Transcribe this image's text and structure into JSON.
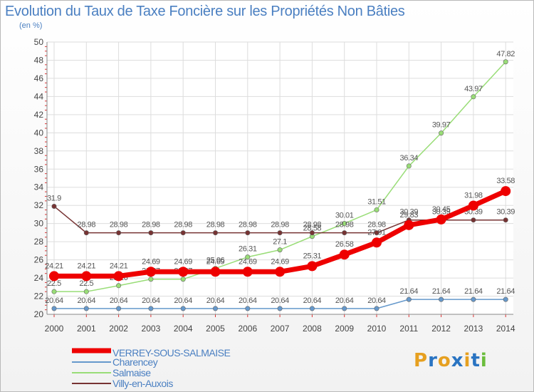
{
  "chart_data": {
    "type": "line",
    "title": "Evolution du Taux de Taxe Foncière sur les Propriétés Non Bâties",
    "ylabel": "(en %)",
    "xlabel": "",
    "ylim": [
      20,
      50
    ],
    "yticks": [
      20,
      22,
      24,
      26,
      28,
      30,
      32,
      34,
      36,
      38,
      40,
      42,
      44,
      46,
      48,
      50
    ],
    "categories": [
      "2000",
      "2001",
      "2002",
      "2003",
      "2004",
      "2005",
      "2006",
      "2007",
      "2008",
      "2009",
      "2010",
      "2011",
      "2012",
      "2013",
      "2014"
    ],
    "grid": true,
    "series": [
      {
        "name": "Charencey",
        "color": "#6699cc",
        "values": [
          20.64,
          20.64,
          20.64,
          20.64,
          20.64,
          20.64,
          20.64,
          20.64,
          20.64,
          20.64,
          20.64,
          21.64,
          21.64,
          21.64,
          21.64
        ],
        "labels": [
          "20.64",
          "20.64",
          "20.64",
          "20.64",
          "20.64",
          "20.64",
          "20.64",
          "20.64",
          "20.64",
          "20.64",
          "20.64",
          "21.64",
          "21.64",
          "21.64",
          "21.64"
        ]
      },
      {
        "name": "Salmaise",
        "color": "#99dd77",
        "values": [
          22.5,
          22.5,
          23.16,
          23.87,
          23.87,
          25.06,
          26.31,
          27.1,
          28.58,
          30.01,
          31.51,
          36.34,
          39.97,
          43.97,
          47.82
        ],
        "labels": [
          "22.5",
          "22.5",
          "23.16",
          "23.87",
          "23.87",
          "25.06",
          "26.31",
          "27.1",
          "28.58",
          "30.01",
          "31.51",
          "36.34",
          "39.97",
          "43.97",
          "47.82"
        ]
      },
      {
        "name": "Villy-en-Auxois",
        "color": "#773333",
        "values": [
          31.9,
          28.98,
          28.98,
          28.98,
          28.98,
          28.98,
          28.98,
          28.98,
          28.98,
          28.98,
          28.98,
          30.39,
          30.39,
          30.39,
          30.39
        ],
        "labels": [
          "31.9",
          "28.98",
          "28.98",
          "28.98",
          "28.98",
          "28.98",
          "28.98",
          "28.98",
          "28.98",
          "28.98",
          "28.98",
          "30.39",
          "30.39",
          "30.39",
          "30.39"
        ]
      },
      {
        "name": "VERREY-SOUS-SALMAISE",
        "color": "#ee0000",
        "values": [
          24.21,
          24.21,
          24.21,
          24.69,
          24.69,
          24.69,
          24.69,
          24.69,
          25.31,
          26.58,
          27.91,
          29.83,
          30.45,
          31.98,
          33.58
        ],
        "labels": [
          "24.21",
          "24.21",
          "24.21",
          "24.69",
          "24.69",
          "24.69",
          "24.69",
          "24.69",
          "25.31",
          "26.58",
          "27.91",
          "29.83",
          "30.45",
          "31.98",
          "33.58"
        ]
      }
    ]
  },
  "legend": {
    "items": [
      {
        "label": "VERREY-SOUS-SALMAISE",
        "color": "#ee0000"
      },
      {
        "label": "Charencey",
        "color": "#6699cc"
      },
      {
        "label": "Salmaise",
        "color": "#99dd77"
      },
      {
        "label": "Villy-en-Auxois",
        "color": "#773333"
      }
    ]
  },
  "logo": {
    "letters": [
      "P",
      "r",
      "o",
      "x",
      "i",
      "t",
      "i"
    ],
    "colors": [
      "#e6a020",
      "#2a74c2",
      "#e6a020",
      "#2a74c2",
      "#e6a020",
      "#2a74c2",
      "#6bbd3c"
    ]
  }
}
